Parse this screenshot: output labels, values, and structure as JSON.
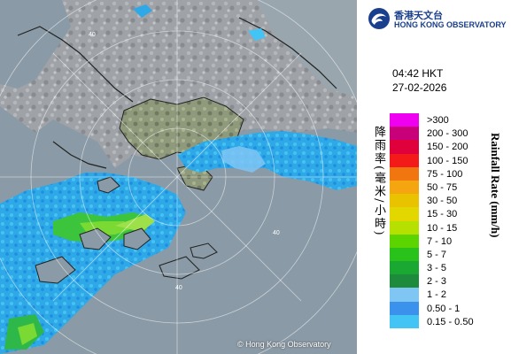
{
  "map": {
    "copyright": "© Hong Kong Observatory",
    "range_labels": [
      "40",
      "40",
      "40"
    ]
  },
  "header": {
    "logo_chinese": "香港天文台",
    "logo_english": "HONG KONG OBSERVATORY",
    "logo_icon": "hko-emblem-icon"
  },
  "timestamp": {
    "time": "04:42 HKT",
    "date": "27-02-2026"
  },
  "legend": {
    "title_chinese": "降雨率(毫米/小時)",
    "title_english": "Rainfall Rate (mm/h)",
    "items": [
      {
        "label": ">300",
        "color": "#f000f0"
      },
      {
        "label": "200 - 300",
        "color": "#c8007a"
      },
      {
        "label": "150 - 200",
        "color": "#e0003c"
      },
      {
        "label": "100 - 150",
        "color": "#f51a1a"
      },
      {
        "label": "75 - 100",
        "color": "#f2760f"
      },
      {
        "label": "50 - 75",
        "color": "#f5a50f"
      },
      {
        "label": "30 - 50",
        "color": "#e9c300"
      },
      {
        "label": "15 - 30",
        "color": "#e2d800"
      },
      {
        "label": "10 - 15",
        "color": "#b6e000"
      },
      {
        "label": "7 - 10",
        "color": "#5bd400"
      },
      {
        "label": "5 - 7",
        "color": "#28c21a"
      },
      {
        "label": "3 - 5",
        "color": "#1aa832"
      },
      {
        "label": "2 - 3",
        "color": "#1d8a3c"
      },
      {
        "label": "1 - 2",
        "color": "#7fc6f4"
      },
      {
        "label": "0.50 - 1",
        "color": "#3a92ec"
      },
      {
        "label": "0.15 - 0.50",
        "color": "#42c5f5"
      }
    ]
  }
}
